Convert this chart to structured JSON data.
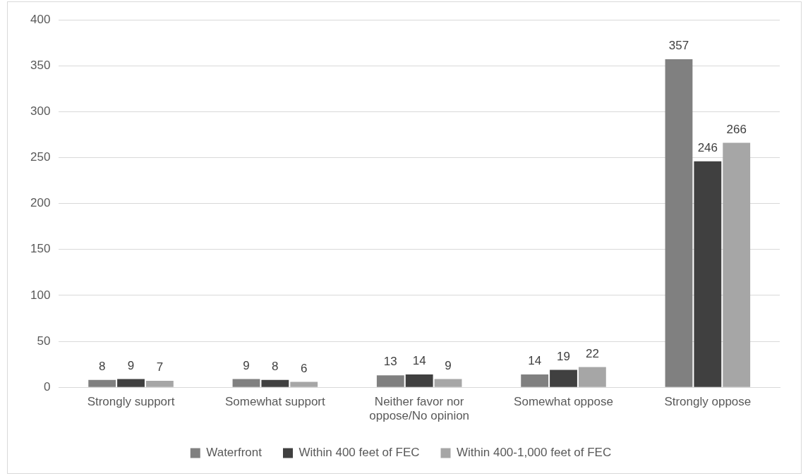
{
  "chart_data": {
    "type": "bar",
    "categories": [
      "Strongly support",
      "Somewhat support",
      "Neither favor nor oppose/No opinion",
      "Somewhat oppose",
      "Strongly oppose"
    ],
    "series": [
      {
        "name": "Waterfront",
        "color": "#808080",
        "values": [
          8,
          9,
          13,
          14,
          357
        ]
      },
      {
        "name": "Within 400 feet of FEC",
        "color": "#404040",
        "values": [
          9,
          8,
          14,
          19,
          246
        ]
      },
      {
        "name": "Within 400-1,000 feet of FEC",
        "color": "#a6a6a6",
        "values": [
          7,
          6,
          9,
          22,
          266
        ]
      }
    ],
    "ylim": [
      0,
      400
    ],
    "yticks": [
      0,
      50,
      100,
      150,
      200,
      250,
      300,
      350,
      400
    ],
    "grid": "y",
    "legend": "bottom",
    "data_labels": true
  }
}
